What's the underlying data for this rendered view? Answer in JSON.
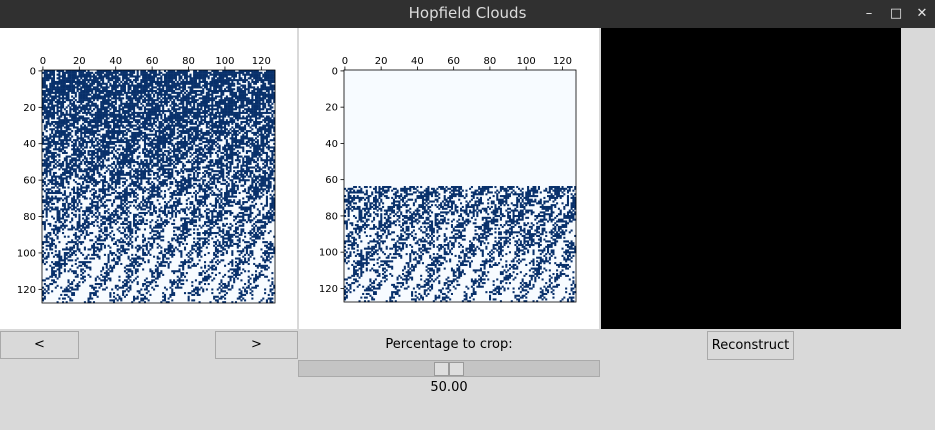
{
  "window": {
    "title": "Hopfield Clouds",
    "controls": [
      "–",
      "□",
      "✕"
    ]
  },
  "plots": {
    "x_ticks": [
      "0",
      "20",
      "40",
      "60",
      "80",
      "100",
      "120"
    ],
    "y_ticks": [
      "0",
      "20",
      "40",
      "60",
      "80",
      "100",
      "120"
    ],
    "crop_rows": 64,
    "colors": {
      "dark": "#08306b",
      "light": "#f7fbff"
    }
  },
  "nav": {
    "prev_label": "<",
    "next_label": ">"
  },
  "crop": {
    "label": "Percentage to crop:",
    "value": "50.00",
    "fraction": 0.5
  },
  "reconstruct": {
    "label": "Reconstruct"
  }
}
